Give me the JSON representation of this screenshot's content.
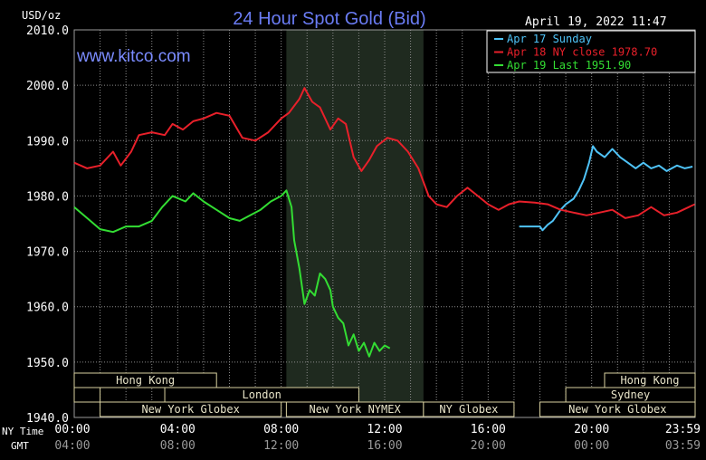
{
  "chart_data": {
    "type": "line",
    "title": "24 Hour Spot Gold (Bid)",
    "ylabel": "USD/oz",
    "watermark": "www.kitco.com",
    "timestamp": "April 19, 2022 11:47",
    "ylim": [
      1940,
      2010
    ],
    "xlim": [
      0,
      24
    ],
    "grid": true,
    "legend_placement": "top-right",
    "y_ticks": [
      "2010.0",
      "2000.0",
      "1990.0",
      "1980.0",
      "1970.0",
      "1960.0",
      "1950.0",
      "1940.0"
    ],
    "y_tick_values": [
      2010,
      2000,
      1990,
      1980,
      1970,
      1960,
      1950,
      1940
    ],
    "x_label_ny": "NY Time",
    "x_label_gmt": "GMT",
    "x_ticks_ny": [
      "00:00",
      "04:00",
      "08:00",
      "12:00",
      "16:00",
      "20:00",
      "23:59"
    ],
    "x_ticks_gmt": [
      "04:00",
      "08:00",
      "12:00",
      "16:00",
      "20:00",
      "00:00",
      "03:59"
    ],
    "x_tick_values": [
      0,
      4,
      8,
      12,
      16,
      20,
      23.983
    ],
    "legend": [
      {
        "label": "Apr 17 Sunday",
        "color": "#4fc3f7"
      },
      {
        "label": "Apr 18 NY close 1978.70",
        "color": "#e8202a"
      },
      {
        "label": "Apr 19 Last 1951.90",
        "color": "#33dd33"
      }
    ],
    "shaded_region": {
      "x": [
        8.2,
        13.5
      ]
    },
    "markets": [
      {
        "label": "Hong Kong",
        "x": [
          0,
          5.5
        ],
        "row": 0
      },
      {
        "label": "",
        "x": [
          0,
          1
        ],
        "row": 1
      },
      {
        "label": "London",
        "x": [
          3.5,
          11
        ],
        "row": 1
      },
      {
        "label": "New York Globex",
        "x": [
          1,
          8
        ],
        "row": 2
      },
      {
        "label": "New York NYMEX",
        "x": [
          8.2,
          13.5
        ],
        "row": 2
      },
      {
        "label": "NY Globex",
        "x": [
          13.5,
          17
        ],
        "row": 2
      },
      {
        "label": "Hong Kong",
        "x": [
          20.5,
          24
        ],
        "row": 0
      },
      {
        "label": "Sydney",
        "x": [
          19,
          24
        ],
        "row": 1
      },
      {
        "label": "New York Globex",
        "x": [
          18,
          24
        ],
        "row": 2
      }
    ],
    "series": [
      {
        "name": "Apr 17 Sunday",
        "color": "#4fc3f7",
        "x": [
          17.2,
          17.6,
          18.0,
          18.1,
          18.3,
          18.5,
          18.8,
          19.0,
          19.3,
          19.5,
          19.7,
          19.9,
          20.05,
          20.2,
          20.5,
          20.8,
          21.1,
          21.4,
          21.7,
          22.0,
          22.3,
          22.6,
          22.9,
          23.3,
          23.6,
          23.9
        ],
        "y": [
          1974.5,
          1974.5,
          1974.5,
          1973.8,
          1974.8,
          1975.5,
          1977.5,
          1978.5,
          1979.5,
          1981,
          1983,
          1986,
          1989,
          1988,
          1987,
          1988.5,
          1987,
          1986,
          1985,
          1986,
          1985,
          1985.5,
          1984.5,
          1985.5,
          1985,
          1985.3
        ]
      },
      {
        "name": "Apr 18 NY close 1978.70",
        "color": "#e8202a",
        "x": [
          0,
          0.5,
          1.0,
          1.5,
          1.8,
          2.2,
          2.5,
          3.0,
          3.5,
          3.8,
          4.2,
          4.6,
          5.0,
          5.5,
          6.0,
          6.5,
          7.0,
          7.5,
          8.0,
          8.3,
          8.7,
          8.9,
          9.2,
          9.5,
          9.9,
          10.2,
          10.5,
          10.8,
          11.1,
          11.4,
          11.7,
          12.1,
          12.5,
          12.9,
          13.3,
          13.7,
          14.0,
          14.4,
          14.8,
          15.2,
          15.6,
          16.0,
          16.4,
          16.8,
          17.2,
          17.8,
          18.3,
          18.8,
          19.3,
          19.8,
          20.3,
          20.8,
          21.3,
          21.8,
          22.3,
          22.8,
          23.3,
          23.983
        ],
        "y": [
          1986,
          1985,
          1985.5,
          1988,
          1985.5,
          1988,
          1991,
          1991.5,
          1991,
          1993,
          1992,
          1993.5,
          1994,
          1995,
          1994.5,
          1990.5,
          1990,
          1991.5,
          1994,
          1995,
          1997.5,
          1999.5,
          1997,
          1996,
          1992,
          1994,
          1993,
          1987,
          1984.5,
          1986.5,
          1989,
          1990.5,
          1990,
          1988,
          1985,
          1980,
          1978.5,
          1978,
          1980,
          1981.5,
          1980,
          1978.5,
          1977.5,
          1978.5,
          1979,
          1978.8,
          1978.5,
          1977.5,
          1977,
          1976.5,
          1977,
          1977.5,
          1976,
          1976.5,
          1978,
          1976.5,
          1977,
          1978.5
        ]
      },
      {
        "name": "Apr 19 Last 1951.90",
        "color": "#33dd33",
        "x": [
          0,
          0.5,
          1.0,
          1.5,
          2.0,
          2.5,
          3.0,
          3.4,
          3.8,
          4.3,
          4.6,
          5.0,
          5.5,
          6.0,
          6.4,
          6.8,
          7.2,
          7.6,
          8.0,
          8.2,
          8.4,
          8.5,
          8.7,
          8.9,
          9.1,
          9.3,
          9.5,
          9.7,
          9.9,
          10.0,
          10.2,
          10.4,
          10.6,
          10.8,
          11.0,
          11.2,
          11.4,
          11.6,
          11.8,
          12.0,
          12.2
        ],
        "y": [
          1978,
          1976,
          1974,
          1973.5,
          1974.5,
          1974.5,
          1975.5,
          1978,
          1980,
          1979,
          1980.5,
          1979,
          1977.5,
          1976,
          1975.5,
          1976.5,
          1977.5,
          1979,
          1980,
          1981,
          1978,
          1972,
          1967,
          1960.5,
          1963,
          1962,
          1966,
          1965,
          1963,
          1960,
          1958,
          1957,
          1953,
          1955,
          1952,
          1953.5,
          1951,
          1953.5,
          1952,
          1953,
          1952.5
        ]
      }
    ]
  }
}
